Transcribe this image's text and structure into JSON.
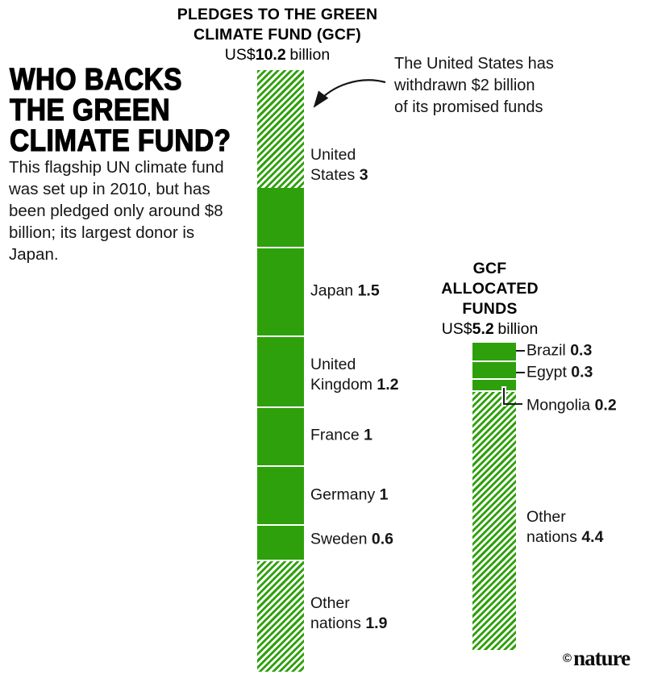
{
  "title_lines": [
    "WHO BACKS",
    "THE GREEN",
    "CLIMATE FUND?"
  ],
  "intro": "This flagship UN climate fund was set up in 2010, but has been pledged only around $8 billion; its largest donor is Japan.",
  "annotation_lines": [
    "The United States has",
    "withdrawn $2 billion",
    "of its promised funds"
  ],
  "brand": {
    "symbol": "©",
    "name": "nature"
  },
  "colors": {
    "green": "#2ea00b",
    "ink": "#111111"
  },
  "chart_data": [
    {
      "type": "bar",
      "orientation": "vertical-stacked",
      "title_lines": [
        "PLEDGES TO THE GREEN",
        "CLIMATE FUND (GCF)"
      ],
      "title": "PLEDGES TO THE GREEN CLIMATE FUND (GCF)",
      "total": {
        "currency": "US$",
        "amount": "10.2",
        "unit": "billion"
      },
      "unit": "US$ billion",
      "segments": [
        {
          "name": "United States",
          "value": 3,
          "style": "solid",
          "hatched_value": 2
        },
        {
          "name": "Japan",
          "value": 1.5,
          "style": "solid"
        },
        {
          "name": "United Kingdom",
          "value": 1.2,
          "style": "solid"
        },
        {
          "name": "France",
          "value": 1,
          "style": "solid"
        },
        {
          "name": "Germany",
          "value": 1,
          "style": "solid"
        },
        {
          "name": "Sweden",
          "value": 0.6,
          "style": "solid"
        },
        {
          "name": "Other nations",
          "value": 1.9,
          "style": "hatched"
        }
      ]
    },
    {
      "type": "bar",
      "orientation": "vertical-stacked",
      "title_lines": [
        "GCF",
        "ALLOCATED",
        "FUNDS"
      ],
      "title": "GCF ALLOCATED FUNDS",
      "total": {
        "currency": "US$",
        "amount": "5.2",
        "unit": "billion"
      },
      "unit": "US$ billion",
      "segments": [
        {
          "name": "Brazil",
          "value": 0.3,
          "style": "solid"
        },
        {
          "name": "Egypt",
          "value": 0.3,
          "style": "solid"
        },
        {
          "name": "Mongolia",
          "value": 0.2,
          "style": "solid"
        },
        {
          "name": "Other nations",
          "value": 4.4,
          "style": "hatched"
        }
      ]
    }
  ]
}
